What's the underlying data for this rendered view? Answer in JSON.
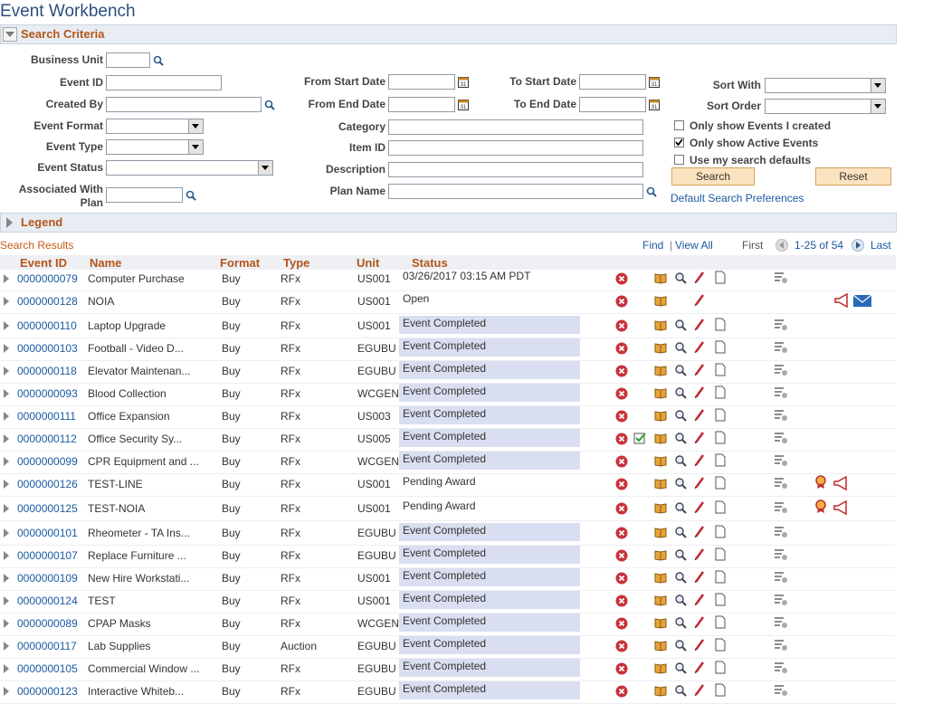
{
  "title": "Event Workbench",
  "search_criteria": {
    "heading": "Search Criteria",
    "fields": [
      "Business Unit",
      "Event ID",
      "Created By",
      "Event Format",
      "Event Type",
      "Event Status",
      "Associated With Plan",
      "From Start Date",
      "From End Date",
      "Category",
      "Item ID",
      "Description",
      "Plan Name",
      "To Start Date",
      "To End Date",
      "Sort With",
      "Sort Order"
    ],
    "checkboxes": [
      {
        "label": "Only show Events I created",
        "checked": false
      },
      {
        "label": "Only show Active Events",
        "checked": true
      },
      {
        "label": "Use my search defaults",
        "checked": false
      }
    ],
    "buttons": [
      "Search",
      "Reset"
    ],
    "link": "Default Search Preferences"
  },
  "legend": "Legend",
  "results": {
    "heading": "Search Results",
    "find": "Find",
    "view_all": "View All",
    "first": "First",
    "range": "1-25 of 54",
    "last": "Last",
    "columns": [
      "Event ID",
      "Name",
      "Format",
      "Type",
      "Unit",
      "Status"
    ],
    "rows": [
      [
        "0000000079",
        "Computer Purchase",
        "Buy",
        "RFx",
        "US001",
        "03/26/2017 03:15 AM PDT"
      ],
      [
        "0000000128",
        "NOIA",
        "Buy",
        "RFx",
        "US001",
        "Open"
      ],
      [
        "0000000110",
        "Laptop Upgrade",
        "Buy",
        "RFx",
        "US001",
        "Event Completed"
      ],
      [
        "0000000103",
        "Football - Video D...",
        "Buy",
        "RFx",
        "EGUBU",
        "Event Completed"
      ],
      [
        "0000000118",
        "Elevator Maintenan...",
        "Buy",
        "RFx",
        "EGUBU",
        "Event Completed"
      ],
      [
        "0000000093",
        "Blood Collection",
        "Buy",
        "RFx",
        "WCGEN",
        "Event Completed"
      ],
      [
        "0000000111",
        "Office Expansion",
        "Buy",
        "RFx",
        "US003",
        "Event Completed"
      ],
      [
        "0000000112",
        "Office Security Sy...",
        "Buy",
        "RFx",
        "US005",
        "Event Completed"
      ],
      [
        "0000000099",
        "CPR Equipment and ...",
        "Buy",
        "RFx",
        "WCGEN",
        "Event Completed"
      ],
      [
        "0000000126",
        "TEST-LINE",
        "Buy",
        "RFx",
        "US001",
        "Pending Award"
      ],
      [
        "0000000125",
        "TEST-NOIA",
        "Buy",
        "RFx",
        "US001",
        "Pending Award"
      ],
      [
        "0000000101",
        "Rheometer - TA Ins...",
        "Buy",
        "RFx",
        "EGUBU",
        "Event Completed"
      ],
      [
        "0000000107",
        "Replace Furniture ...",
        "Buy",
        "RFx",
        "EGUBU",
        "Event Completed"
      ],
      [
        "0000000109",
        "New Hire Workstati...",
        "Buy",
        "RFx",
        "US001",
        "Event Completed"
      ],
      [
        "0000000124",
        "TEST",
        "Buy",
        "RFx",
        "US001",
        "Event Completed"
      ],
      [
        "0000000089",
        "CPAP Masks",
        "Buy",
        "RFx",
        "WCGEN",
        "Event Completed"
      ],
      [
        "0000000117",
        "Lab Supplies",
        "Buy",
        "Auction",
        "EGUBU",
        "Event Completed"
      ],
      [
        "0000000105",
        "Commercial Window ...",
        "Buy",
        "RFx",
        "EGUBU",
        "Event Completed"
      ],
      [
        "0000000123",
        "Interactive Whiteb...",
        "Buy",
        "RFx",
        "EGUBU",
        "Event Completed"
      ]
    ]
  }
}
